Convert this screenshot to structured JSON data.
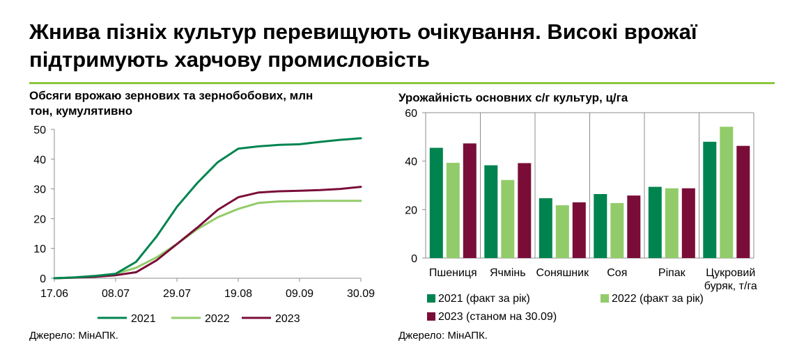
{
  "header": {
    "title_line1": "Жнива пізніх культур перевищують очікування. Високі врожаї",
    "title_line2": "підтримують харчову промисловість"
  },
  "colors": {
    "accent_rule": "#8dc63f",
    "series_2021": "#00844f",
    "series_2022": "#92cc6a",
    "series_2023": "#7a0d38",
    "axis": "#8c8c8c"
  },
  "chart_data": [
    {
      "type": "line",
      "title_line1": "Обсяги врожаю зернових та зернобобових, млн",
      "title_line2": "тон, кумулятивно",
      "x_tick_labels": [
        "17.06",
        "08.07",
        "29.07",
        "19.08",
        "09.09",
        "30.09"
      ],
      "ylim": [
        0,
        50
      ],
      "y_ticks": [
        0,
        10,
        20,
        30,
        40,
        50
      ],
      "grid": false,
      "legend_position": "bottom-center",
      "series": [
        {
          "name": "2021",
          "x": [
            0,
            1,
            2,
            3,
            4,
            5,
            6,
            7,
            8,
            9,
            10,
            11,
            12,
            13,
            14,
            15
          ],
          "values": [
            0,
            0.3,
            0.8,
            1.5,
            5.5,
            14,
            24,
            32,
            39,
            43.5,
            44.3,
            44.8,
            45,
            45.8,
            46.5,
            47
          ]
        },
        {
          "name": "2022",
          "x": [
            0,
            1,
            2,
            3,
            4,
            5,
            6,
            7,
            8,
            9,
            10,
            11,
            12,
            13,
            14,
            15
          ],
          "values": [
            0,
            0.2,
            0.6,
            1.5,
            3.5,
            7,
            11.5,
            16.5,
            20.5,
            23.3,
            25.3,
            25.8,
            25.9,
            26,
            26,
            26
          ]
        },
        {
          "name": "2023",
          "x": [
            0,
            1,
            2,
            3,
            4,
            5,
            6,
            7,
            8,
            9,
            10,
            11,
            12,
            13,
            14,
            15
          ],
          "values": [
            0,
            0.2,
            0.5,
            1,
            2,
            6,
            11.5,
            17,
            23,
            27.2,
            28.8,
            29.2,
            29.4,
            29.6,
            30,
            30.7
          ]
        }
      ],
      "source": "Джерело: МінАПК."
    },
    {
      "type": "bar",
      "title": "Урожайність основних с/г культур, ц/га",
      "categories": [
        "Пшениця",
        "Ячмінь",
        "Соняшник",
        "Соя",
        "Ріпак",
        "Цукровий буряк, т/га"
      ],
      "category_label_lines": [
        [
          "Пшениця"
        ],
        [
          "Ячмінь"
        ],
        [
          "Соняшник"
        ],
        [
          "Соя"
        ],
        [
          "Ріпак"
        ],
        [
          "Цукровий",
          "буряк, т/га"
        ]
      ],
      "ylim": [
        0,
        60
      ],
      "y_ticks": [
        0,
        20,
        40,
        60
      ],
      "grid": false,
      "legend_position": "bottom",
      "series": [
        {
          "name": "2021 (факт за рік)",
          "values": [
            45.5,
            38.3,
            24.7,
            26.4,
            29.4,
            48
          ]
        },
        {
          "name": "2022 (факт за рік)",
          "values": [
            39.3,
            32.2,
            21.8,
            22.7,
            28.8,
            54.2
          ]
        },
        {
          "name": "2023 (станом на 30.09)",
          "values": [
            47.3,
            39.2,
            23,
            25.8,
            28.8,
            46.3
          ]
        }
      ],
      "source": "Джерело: МінАПК."
    }
  ]
}
